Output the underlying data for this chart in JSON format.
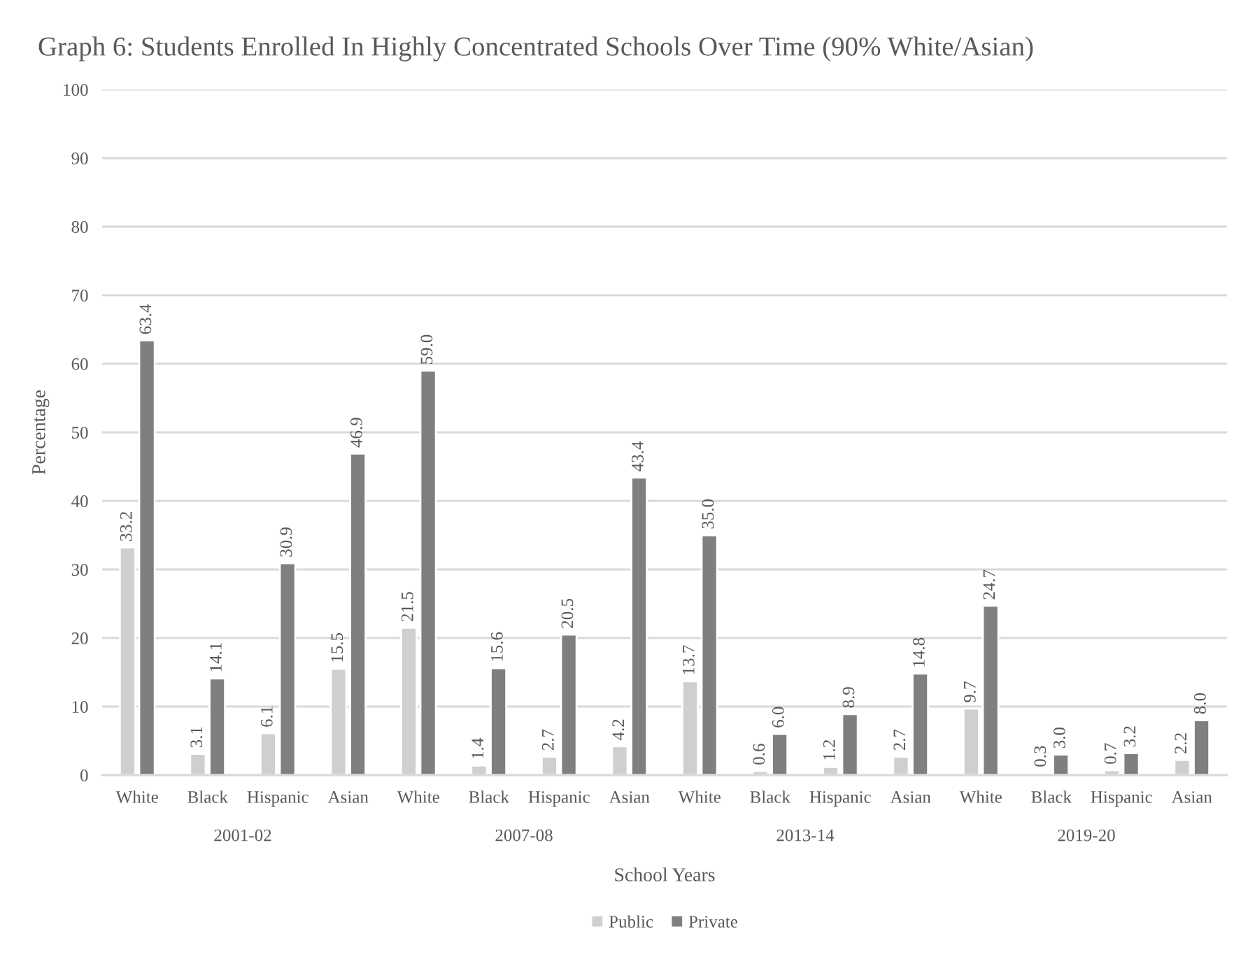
{
  "chart_data": {
    "type": "bar",
    "title": "Graph 6: Students Enrolled In Highly Concentrated Schools Over Time (90% White/Asian)",
    "xlabel": "School Years",
    "ylabel": "Percentage",
    "categories": [
      "White",
      "Black",
      "Hispanic",
      "Asian",
      "White",
      "Black",
      "Hispanic",
      "Asian",
      "White",
      "Black",
      "Hispanic",
      "Asian",
      "White",
      "Black",
      "Hispanic",
      "Asian"
    ],
    "annotations": [
      "2001-02",
      "2007-08",
      "2013-14",
      "2019-20"
    ],
    "series": [
      {
        "name": "Public",
        "color": "#d0cece",
        "values": [
          33.2,
          3.1,
          6.1,
          15.5,
          21.5,
          1.4,
          2.7,
          4.2,
          13.7,
          0.6,
          1.2,
          2.7,
          9.7,
          0.3,
          0.7,
          2.2
        ],
        "value_labels": [
          "33.2",
          "3.1",
          "6.1",
          "15.5",
          "21.5",
          "1.4",
          "2.7",
          "4.2",
          "13.7",
          "0.6",
          "1.2",
          "2.7",
          "9.7",
          "0.3",
          "0.7",
          "2.2"
        ]
      },
      {
        "name": "Private",
        "color": "#7f7f7f",
        "values": [
          63.4,
          14.1,
          30.9,
          46.9,
          59.0,
          15.6,
          20.5,
          43.4,
          35.0,
          6.0,
          8.9,
          14.8,
          24.7,
          3.0,
          3.2,
          8.0
        ],
        "value_labels": [
          "63.4",
          "14.1",
          "30.9",
          "46.9",
          "59.0",
          "15.6",
          "20.5",
          "43.4",
          "35.0",
          "6.0",
          "8.9",
          "14.8",
          "24.7",
          "3.0",
          "3.2",
          "8.0"
        ]
      }
    ],
    "ylim": [
      0,
      100
    ],
    "yticks": [
      0,
      10,
      20,
      30,
      40,
      50,
      60,
      70,
      80,
      90,
      100
    ],
    "grid": "y",
    "legend": "bottom"
  }
}
